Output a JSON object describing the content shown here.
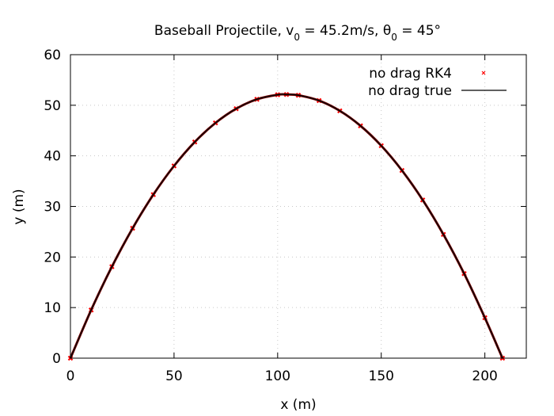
{
  "chart_data": {
    "type": "line",
    "title": {
      "prefix": "Baseball Projectile, v",
      "v_sub": "0",
      "middle": " = 45.2m/s, θ",
      "theta_sub": "0",
      "suffix": " = 45°"
    },
    "xlabel": "x (m)",
    "ylabel": "y (m)",
    "xlim": [
      0,
      220
    ],
    "ylim": [
      0,
      60
    ],
    "xticks": [
      {
        "value": 0,
        "label": "0"
      },
      {
        "value": 50,
        "label": "50"
      },
      {
        "value": 100,
        "label": "100"
      },
      {
        "value": 150,
        "label": "150"
      },
      {
        "value": 200,
        "label": "200"
      }
    ],
    "yticks": [
      {
        "value": 0,
        "label": "0"
      },
      {
        "value": 10,
        "label": "10"
      },
      {
        "value": 20,
        "label": "20"
      },
      {
        "value": 30,
        "label": "30"
      },
      {
        "value": 40,
        "label": "40"
      },
      {
        "value": 50,
        "label": "50"
      },
      {
        "value": 60,
        "label": "60"
      }
    ],
    "grid": true,
    "legend_position": "top-right",
    "series": [
      {
        "name": "no drag RK4",
        "style": "points",
        "color": "#ff0000",
        "x": [
          0,
          10,
          20,
          30,
          40,
          50,
          60,
          70,
          80,
          90,
          100,
          104.26,
          110,
          120,
          130,
          140,
          150,
          160,
          170,
          180,
          190,
          200,
          208.5
        ],
        "y": [
          0,
          9.52,
          18.08,
          25.68,
          32.33,
          38.01,
          42.74,
          46.51,
          49.32,
          51.18,
          52.08,
          52.13,
          51.98,
          50.92,
          48.9,
          45.93,
          42.0,
          37.11,
          31.27,
          24.46,
          16.71,
          7.99,
          0
        ]
      },
      {
        "name": "no drag true",
        "style": "line",
        "color": "#000000",
        "x": [
          0,
          10,
          20,
          30,
          40,
          50,
          60,
          70,
          80,
          90,
          100,
          104.26,
          110,
          120,
          130,
          140,
          150,
          160,
          170,
          180,
          190,
          200,
          208.5
        ],
        "y": [
          0,
          9.52,
          18.08,
          25.68,
          32.33,
          38.01,
          42.74,
          46.51,
          49.32,
          51.18,
          52.08,
          52.13,
          51.98,
          50.92,
          48.9,
          45.93,
          42.0,
          37.11,
          31.27,
          24.46,
          16.71,
          7.99,
          0
        ]
      }
    ]
  }
}
